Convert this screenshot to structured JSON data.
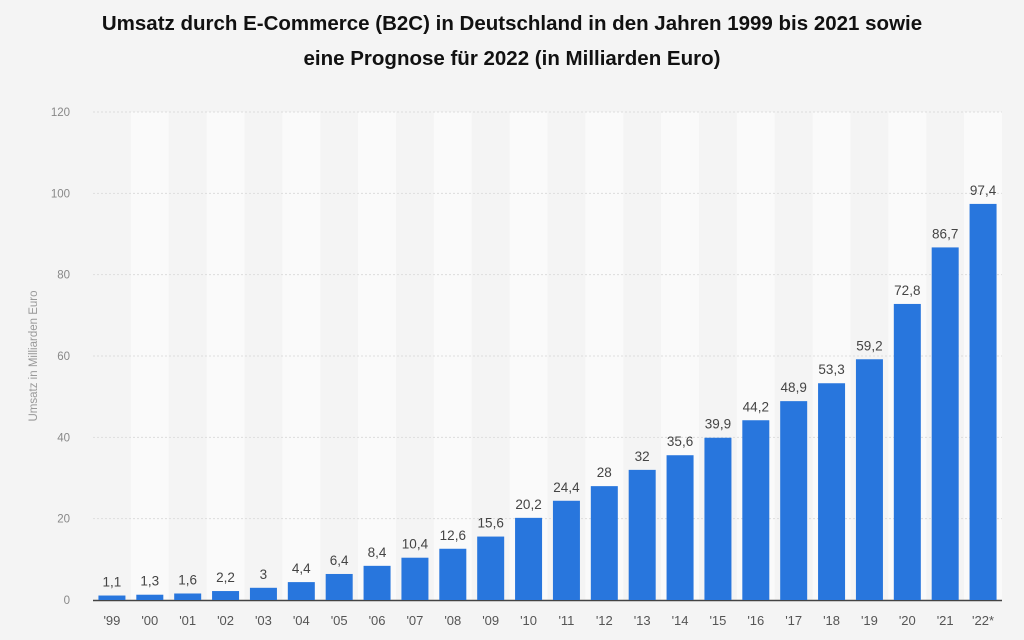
{
  "chart_data": {
    "type": "bar",
    "title": "Umsatz durch E-Commerce (B2C) in Deutschland in den Jahren 1999 bis 2021 sowie eine Prognose für 2022 (in Milliarden Euro)",
    "title_lines": [
      "Umsatz durch E-Commerce (B2C) in Deutschland in den Jahren 1999 bis 2021 sowie",
      "eine Prognose für 2022 (in Milliarden Euro)"
    ],
    "xlabel": "",
    "ylabel": "Umsatz in Milliarden Euro",
    "categories": [
      "'99",
      "'00",
      "'01",
      "'02",
      "'03",
      "'04",
      "'05",
      "'06",
      "'07",
      "'08",
      "'09",
      "'10",
      "'11",
      "'12",
      "'13",
      "'14",
      "'15",
      "'16",
      "'17",
      "'18",
      "'19",
      "'20",
      "'21",
      "'22*"
    ],
    "values": [
      1.1,
      1.3,
      1.6,
      2.2,
      3,
      4.4,
      6.4,
      8.4,
      10.4,
      12.6,
      15.6,
      20.2,
      24.4,
      28,
      32,
      35.6,
      39.9,
      44.2,
      48.9,
      53.3,
      59.2,
      72.8,
      86.7,
      97.4
    ],
    "data_labels": [
      "1,1",
      "1,3",
      "1,6",
      "2,2",
      "3",
      "4,4",
      "6,4",
      "8,4",
      "10,4",
      "12,6",
      "15,6",
      "20,2",
      "24,4",
      "28",
      "32",
      "35,6",
      "39,9",
      "44,2",
      "48,9",
      "53,3",
      "59,2",
      "72,8",
      "86,7",
      "97,4"
    ],
    "ylim": [
      0,
      120
    ],
    "yticks": [
      "0",
      "20",
      "40",
      "60",
      "80",
      "100",
      "120"
    ],
    "grid": true,
    "bar_color": "#2876dd"
  }
}
